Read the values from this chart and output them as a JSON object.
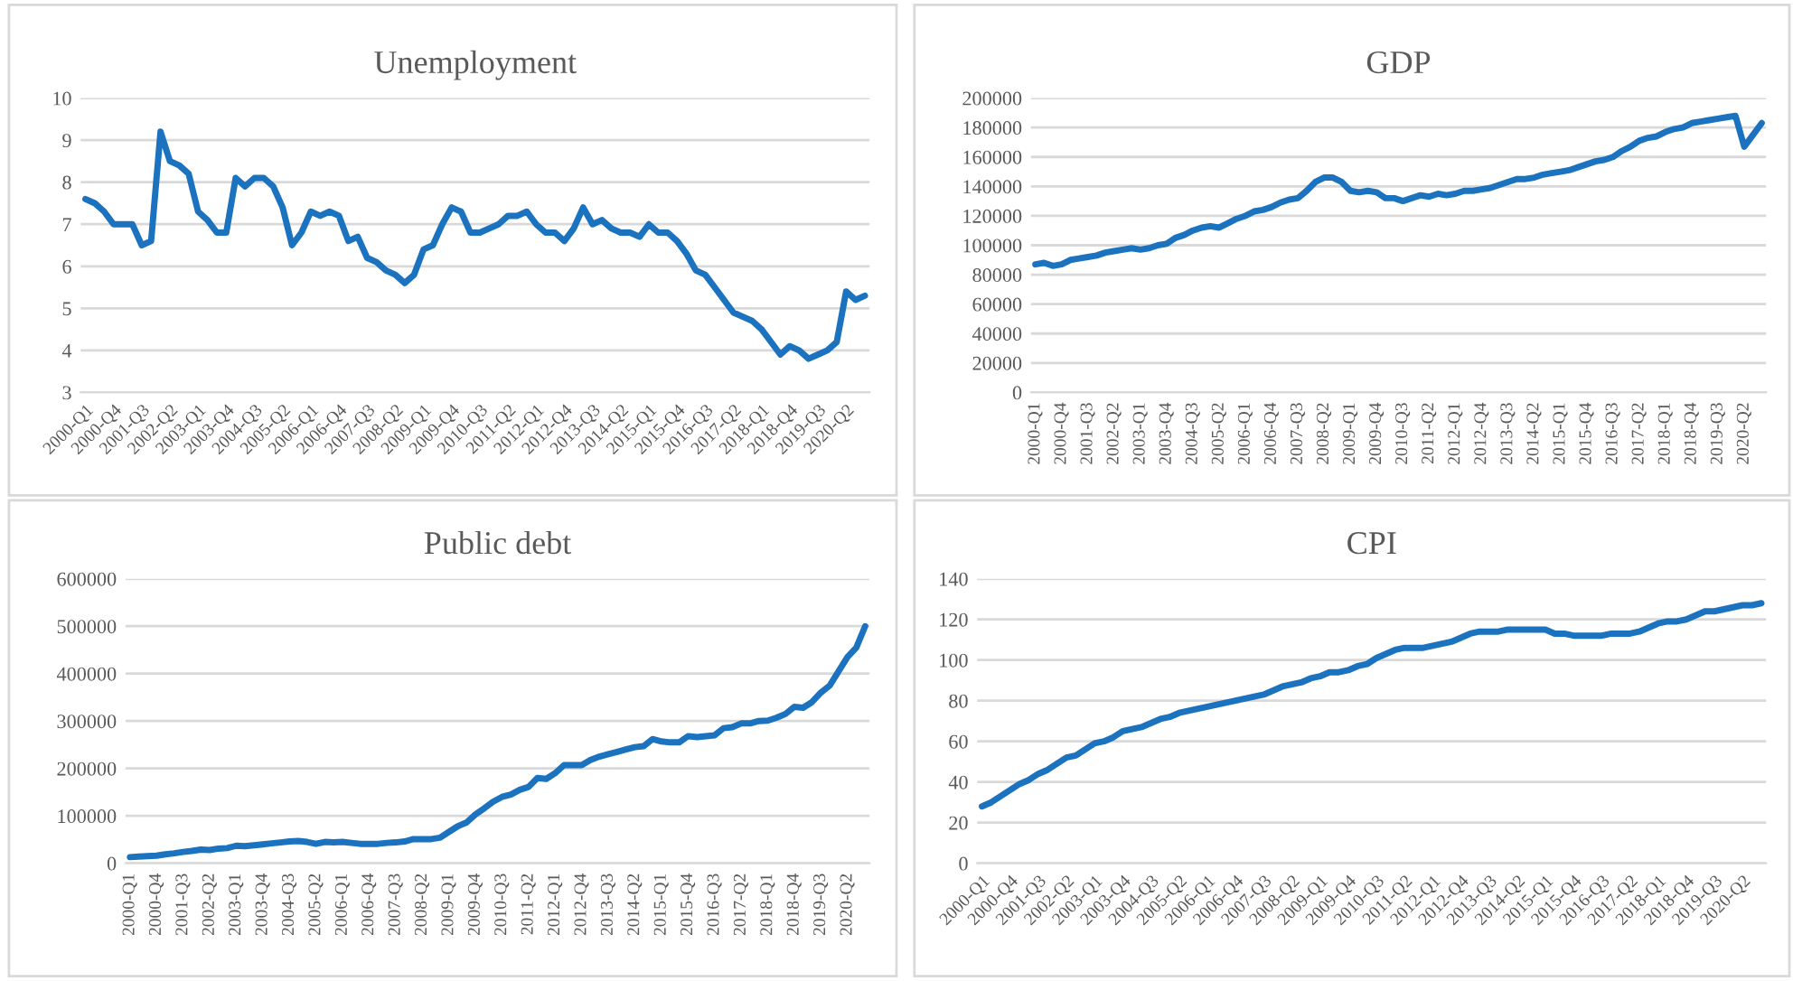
{
  "chart_data": [
    {
      "type": "line",
      "title": "Unemployment",
      "categories": [
        "2000-Q1",
        null,
        null,
        "2000-Q4",
        null,
        null,
        "2001-Q3",
        null,
        null,
        "2002-Q2",
        null,
        null,
        "2003-Q1",
        null,
        null,
        "2003-Q4",
        null,
        null,
        "2004-Q3",
        null,
        null,
        "2005-Q2",
        null,
        null,
        "2006-Q1",
        null,
        null,
        "2006-Q4",
        null,
        null,
        "2007-Q3",
        null,
        null,
        "2008-Q2",
        null,
        null,
        "2009-Q1",
        null,
        null,
        "2009-Q4",
        null,
        null,
        "2010-Q3",
        null,
        null,
        "2011-Q2",
        null,
        null,
        "2012-Q1",
        null,
        null,
        "2012-Q4",
        null,
        null,
        "2013-Q3",
        null,
        null,
        "2014-Q2",
        null,
        null,
        "2015-Q1",
        null,
        null,
        "2015-Q4",
        null,
        null,
        "2016-Q3",
        null,
        null,
        "2017-Q2",
        null,
        null,
        "2018-Q1",
        null,
        null,
        "2018-Q4",
        null,
        null,
        "2019-Q3",
        null,
        null,
        "2020-Q2",
        null,
        null
      ],
      "series": [
        {
          "color": "#1b72be",
          "values": [
            7.6,
            7.5,
            7.3,
            7.0,
            7.0,
            7.0,
            6.5,
            6.6,
            9.2,
            8.5,
            8.4,
            8.2,
            7.3,
            7.1,
            6.8,
            6.8,
            8.1,
            7.9,
            8.1,
            8.1,
            7.9,
            7.4,
            6.5,
            6.8,
            7.3,
            7.2,
            7.3,
            7.2,
            6.6,
            6.7,
            6.2,
            6.1,
            5.9,
            5.8,
            5.6,
            5.8,
            6.4,
            6.5,
            7.0,
            7.4,
            7.3,
            6.8,
            6.8,
            6.9,
            7.0,
            7.2,
            7.2,
            7.3,
            7.0,
            6.8,
            6.8,
            6.6,
            6.9,
            7.4,
            7.0,
            7.1,
            6.9,
            6.8,
            6.8,
            6.7,
            7.0,
            6.8,
            6.8,
            6.6,
            6.3,
            5.9,
            5.8,
            5.5,
            5.2,
            4.9,
            4.8,
            4.7,
            4.5,
            4.2,
            3.9,
            4.1,
            4.0,
            3.8,
            3.9,
            4.0,
            4.2,
            5.4,
            5.2,
            5.3
          ]
        }
      ],
      "ylim": [
        3,
        10
      ],
      "yticks": [
        3,
        4,
        5,
        6,
        7,
        8,
        9,
        10
      ],
      "grid": "y"
    },
    {
      "type": "line",
      "title": "GDP",
      "categories": [
        "2000-Q1",
        null,
        null,
        "2000-Q4",
        null,
        null,
        "2001-Q3",
        null,
        null,
        "2002-Q2",
        null,
        null,
        "2003-Q1",
        null,
        null,
        "2003-Q4",
        null,
        null,
        "2004-Q3",
        null,
        null,
        "2005-Q2",
        null,
        null,
        "2006-Q1",
        null,
        null,
        "2006-Q4",
        null,
        null,
        "2007-Q3",
        null,
        null,
        "2008-Q2",
        null,
        null,
        "2009-Q1",
        null,
        null,
        "2009-Q4",
        null,
        null,
        "2010-Q3",
        null,
        null,
        "2011-Q2",
        null,
        null,
        "2012-Q1",
        null,
        null,
        "2012-Q4",
        null,
        null,
        "2013-Q3",
        null,
        null,
        "2014-Q2",
        null,
        null,
        "2015-Q1",
        null,
        null,
        "2015-Q4",
        null,
        null,
        "2016-Q3",
        null,
        null,
        "2017-Q2",
        null,
        null,
        "2018-Q1",
        null,
        null,
        "2018-Q4",
        null,
        null,
        "2019-Q3",
        null,
        null,
        "2020-Q2",
        null,
        null
      ],
      "series": [
        {
          "color": "#1b72be",
          "values": [
            87000,
            88000,
            86000,
            87000,
            90000,
            91000,
            92000,
            93000,
            95000,
            96000,
            97000,
            98000,
            97000,
            98000,
            100000,
            101000,
            105000,
            107000,
            110000,
            112000,
            113000,
            112000,
            115000,
            118000,
            120000,
            123000,
            124000,
            126000,
            129000,
            131000,
            132000,
            137000,
            143000,
            146000,
            146000,
            143000,
            137000,
            136000,
            137000,
            136000,
            132000,
            132000,
            130000,
            132000,
            134000,
            133000,
            135000,
            134000,
            135000,
            137000,
            137000,
            138000,
            139000,
            141000,
            143000,
            145000,
            145000,
            146000,
            148000,
            149000,
            150000,
            151000,
            153000,
            155000,
            157000,
            158000,
            160000,
            164000,
            167000,
            171000,
            173000,
            174000,
            177000,
            179000,
            180000,
            183000,
            184000,
            185000,
            186000,
            187000,
            188000,
            167000,
            175000,
            183000
          ]
        }
      ],
      "ylim": [
        0,
        200000
      ],
      "yticks": [
        0,
        20000,
        40000,
        60000,
        80000,
        100000,
        120000,
        140000,
        160000,
        180000,
        200000
      ],
      "grid": "y"
    },
    {
      "type": "line",
      "title": "Public debt",
      "categories": [
        "2000-Q1",
        null,
        null,
        "2000-Q4",
        null,
        null,
        "2001-Q3",
        null,
        null,
        "2002-Q2",
        null,
        null,
        "2003-Q1",
        null,
        null,
        "2003-Q4",
        null,
        null,
        "2004-Q3",
        null,
        null,
        "2005-Q2",
        null,
        null,
        "2006-Q1",
        null,
        null,
        "2006-Q4",
        null,
        null,
        "2007-Q3",
        null,
        null,
        "2008-Q2",
        null,
        null,
        "2009-Q1",
        null,
        null,
        "2009-Q4",
        null,
        null,
        "2010-Q3",
        null,
        null,
        "2011-Q2",
        null,
        null,
        "2012-Q1",
        null,
        null,
        "2012-Q4",
        null,
        null,
        "2013-Q3",
        null,
        null,
        "2014-Q2",
        null,
        null,
        "2015-Q1",
        null,
        null,
        "2015-Q4",
        null,
        null,
        "2016-Q3",
        null,
        null,
        "2017-Q2",
        null,
        null,
        "2018-Q1",
        null,
        null,
        "2018-Q4",
        null,
        null,
        "2019-Q3",
        null,
        null,
        "2020-Q2",
        null,
        null
      ],
      "series": [
        {
          "color": "#1b72be",
          "values": [
            13000,
            14000,
            15000,
            16000,
            19000,
            21000,
            24000,
            26000,
            29000,
            28000,
            31000,
            32000,
            37000,
            36000,
            38000,
            40000,
            42000,
            44000,
            46000,
            47000,
            45000,
            41000,
            45000,
            44000,
            45000,
            43000,
            41000,
            41000,
            41000,
            43000,
            44000,
            46000,
            51000,
            51000,
            51000,
            54000,
            66000,
            78000,
            86000,
            103000,
            116000,
            130000,
            140000,
            145000,
            155000,
            161000,
            180000,
            178000,
            190000,
            207000,
            207000,
            207000,
            218000,
            225000,
            230000,
            235000,
            240000,
            245000,
            247000,
            262000,
            257000,
            255000,
            255000,
            268000,
            266000,
            268000,
            270000,
            285000,
            287000,
            295000,
            295000,
            300000,
            301000,
            307000,
            315000,
            330000,
            328000,
            340000,
            360000,
            375000,
            405000,
            435000,
            455000,
            500000
          ]
        }
      ],
      "ylim": [
        0,
        600000
      ],
      "yticks": [
        0,
        100000,
        200000,
        300000,
        400000,
        500000,
        600000
      ],
      "grid": "y"
    },
    {
      "type": "line",
      "title": "CPI",
      "categories": [
        "2000-Q1",
        null,
        null,
        "2000-Q4",
        null,
        null,
        "2001-Q3",
        null,
        null,
        "2002-Q2",
        null,
        null,
        "2003-Q1",
        null,
        null,
        "2003-Q4",
        null,
        null,
        "2004-Q3",
        null,
        null,
        "2005-Q2",
        null,
        null,
        "2006-Q1",
        null,
        null,
        "2006-Q4",
        null,
        null,
        "2007-Q3",
        null,
        null,
        "2008-Q2",
        null,
        null,
        "2009-Q1",
        null,
        null,
        "2009-Q4",
        null,
        null,
        "2010-Q3",
        null,
        null,
        "2011-Q2",
        null,
        null,
        "2012-Q1",
        null,
        null,
        "2012-Q4",
        null,
        null,
        "2013-Q3",
        null,
        null,
        "2014-Q2",
        null,
        null,
        "2015-Q1",
        null,
        null,
        "2015-Q4",
        null,
        null,
        "2016-Q3",
        null,
        null,
        "2017-Q2",
        null,
        null,
        "2018-Q1",
        null,
        null,
        "2018-Q4",
        null,
        null,
        "2019-Q3",
        null,
        null,
        "2020-Q2",
        null,
        null
      ],
      "series": [
        {
          "color": "#1b72be",
          "values": [
            28,
            30,
            33,
            36,
            39,
            41,
            44,
            46,
            49,
            52,
            53,
            56,
            59,
            60,
            62,
            65,
            66,
            67,
            69,
            71,
            72,
            74,
            75,
            76,
            77,
            78,
            79,
            80,
            81,
            82,
            83,
            85,
            87,
            88,
            89,
            91,
            92,
            94,
            94,
            95,
            97,
            98,
            101,
            103,
            105,
            106,
            106,
            106,
            107,
            108,
            109,
            111,
            113,
            114,
            114,
            114,
            115,
            115,
            115,
            115,
            115,
            113,
            113,
            112,
            112,
            112,
            112,
            113,
            113,
            113,
            114,
            116,
            118,
            119,
            119,
            120,
            122,
            124,
            124,
            125,
            126,
            127,
            127,
            128
          ]
        }
      ],
      "ylim": [
        0,
        140
      ],
      "yticks": [
        0,
        20,
        40,
        60,
        80,
        100,
        120,
        140
      ],
      "grid": "y"
    }
  ]
}
